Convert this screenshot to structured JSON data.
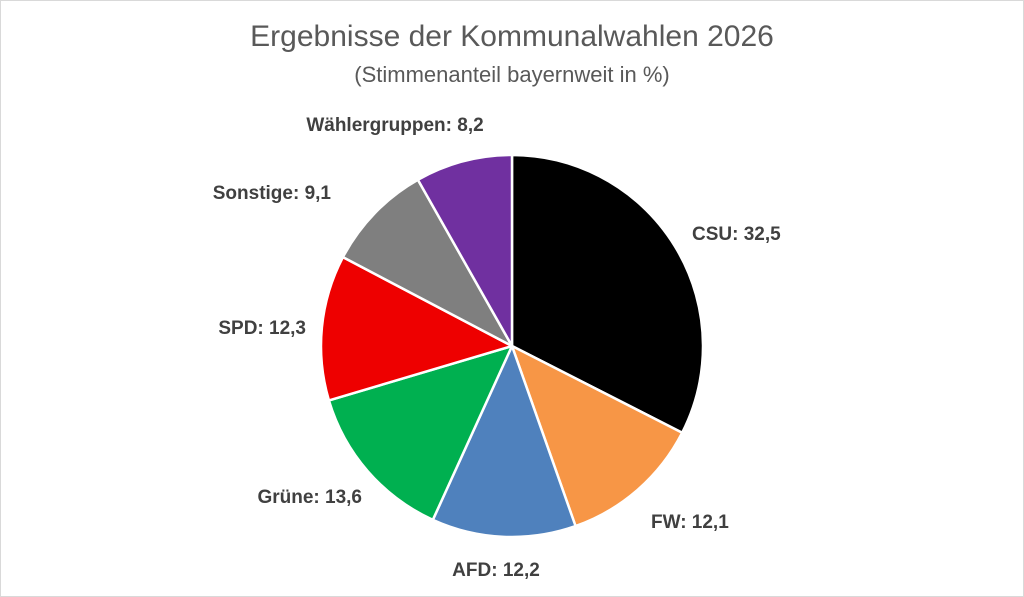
{
  "chart_data": {
    "type": "pie",
    "title": "Ergebnisse der Kommunalwahlen 2026",
    "subtitle": "(Stimmenanteil bayernweit in %)",
    "slices": [
      {
        "label": "CSU",
        "value": 32.5,
        "display": "32,5",
        "color": "#000000"
      },
      {
        "label": "FW",
        "value": 12.1,
        "display": "12,1",
        "color": "#F79646"
      },
      {
        "label": "AFD",
        "value": 12.2,
        "display": "12,2",
        "color": "#4F81BD"
      },
      {
        "label": "Grüne",
        "value": 13.6,
        "display": "13,6",
        "color": "#00B050"
      },
      {
        "label": "SPD",
        "value": 12.3,
        "display": "12,3",
        "color": "#EE0000"
      },
      {
        "label": "Sonstige",
        "value": 9.1,
        "display": "9,1",
        "color": "#7F7F7F"
      },
      {
        "label": "Wählergruppen",
        "value": 8.2,
        "display": "8,2",
        "color": "#7030A0"
      }
    ],
    "start_angle": "top",
    "direction": "clockwise",
    "legend": "none"
  }
}
